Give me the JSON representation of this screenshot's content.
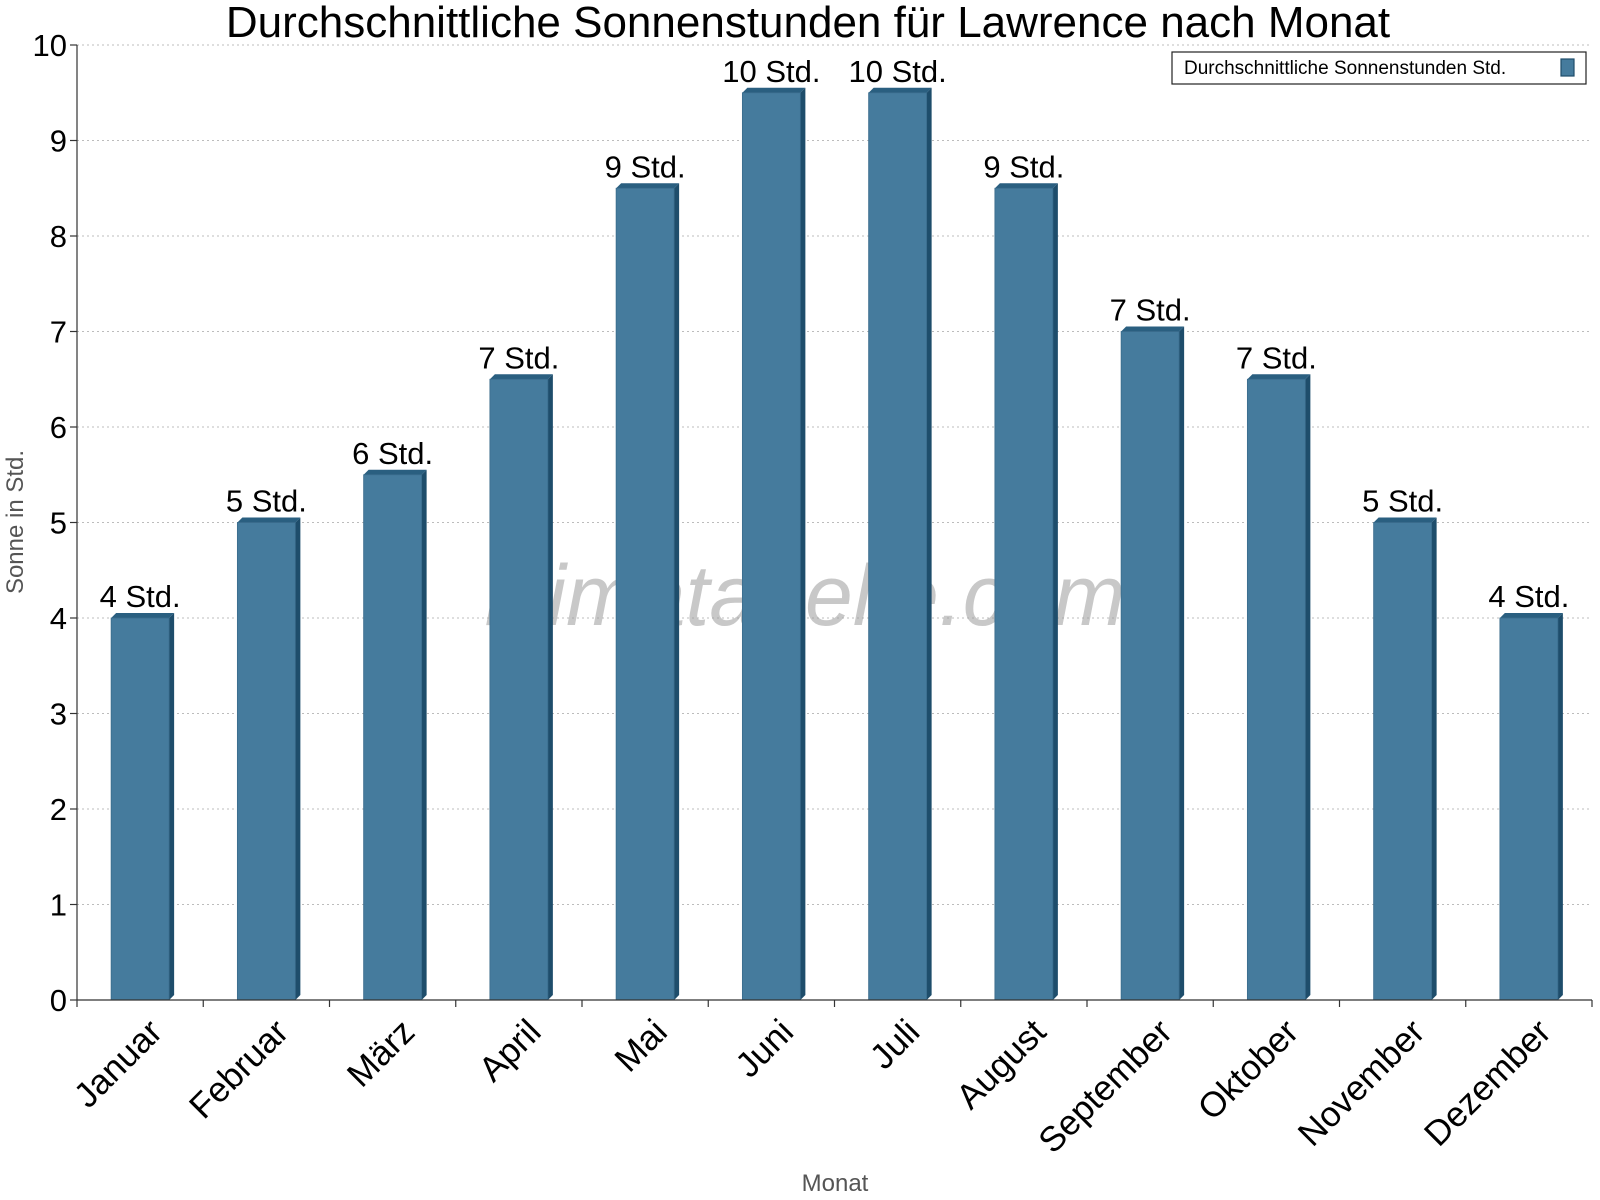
{
  "chart_data": {
    "type": "bar",
    "title": "Durchschnittliche Sonnenstunden für Lawrence nach Monat",
    "xlabel": "Monat",
    "ylabel": "Sonne in Std.",
    "ylim": [
      0,
      10
    ],
    "yticks": [
      0,
      1,
      2,
      3,
      4,
      5,
      6,
      7,
      8,
      9,
      10
    ],
    "grid": true,
    "legend_position": "top-right",
    "categories": [
      "Januar",
      "Februar",
      "März",
      "April",
      "Mai",
      "Juni",
      "Juli",
      "August",
      "September",
      "Oktober",
      "November",
      "Dezember"
    ],
    "series": [
      {
        "name": "Durchschnittliche Sonnenstunden Std.",
        "color": "#457b9d",
        "values": [
          4,
          5,
          5.5,
          6.5,
          8.5,
          9.5,
          9.5,
          8.5,
          7,
          6.5,
          5,
          4
        ],
        "labels": [
          "4 Std.",
          "5 Std.",
          "6 Std.",
          "7 Std.",
          "9 Std.",
          "10 Std.",
          "10 Std.",
          "9 Std.",
          "7 Std.",
          "7 Std.",
          "5 Std.",
          "4 Std."
        ]
      }
    ],
    "watermark": "klimatabelle.com"
  }
}
